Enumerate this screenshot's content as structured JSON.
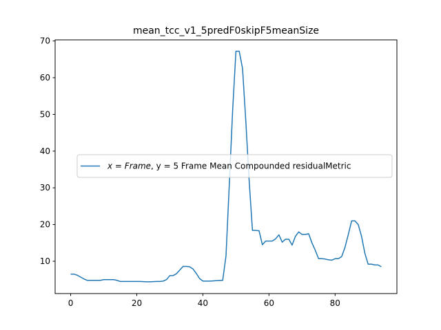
{
  "chart_data": {
    "type": "line",
    "title": "mean_tcc_v1_5predF0skipF5meanSize",
    "xlabel": "",
    "ylabel": "",
    "xlim": [
      -4.7,
      98.7
    ],
    "ylim": [
      1.2,
      70.3
    ],
    "x_ticks": [
      0,
      20,
      40,
      60,
      80
    ],
    "y_ticks": [
      10,
      20,
      30,
      40,
      50,
      60,
      70
    ],
    "grid": false,
    "legend": {
      "placement": "center-right"
    },
    "series": [
      {
        "legend_prefix": "x = Frame",
        "legend_suffix": ", y = 5 Frame Mean Compounded residualMetric",
        "color": "#1f77b4",
        "x": [
          0,
          1,
          2,
          3,
          4,
          5,
          6,
          7,
          8,
          9,
          10,
          11,
          12,
          13,
          14,
          15,
          16,
          17,
          18,
          19,
          20,
          21,
          22,
          23,
          24,
          25,
          26,
          27,
          28,
          29,
          30,
          31,
          32,
          33,
          34,
          35,
          36,
          37,
          38,
          39,
          40,
          41,
          42,
          43,
          44,
          45,
          46,
          47,
          48,
          49,
          50,
          51,
          52,
          53,
          54,
          55,
          56,
          57,
          58,
          59,
          60,
          61,
          62,
          63,
          64,
          65,
          66,
          67,
          68,
          69,
          70,
          71,
          72,
          73,
          74,
          75,
          76,
          77,
          78,
          79,
          80,
          81,
          82,
          83,
          84,
          85,
          86,
          87,
          88,
          89,
          90,
          91,
          92,
          93,
          94
        ],
        "y": [
          6.5,
          6.5,
          6.2,
          5.7,
          5.2,
          4.8,
          4.8,
          4.8,
          4.8,
          4.8,
          5.0,
          5.0,
          5.0,
          5.0,
          4.8,
          4.5,
          4.5,
          4.5,
          4.5,
          4.5,
          4.5,
          4.5,
          4.45,
          4.4,
          4.4,
          4.45,
          4.5,
          4.5,
          4.6,
          5.0,
          6.1,
          6.1,
          6.6,
          7.6,
          8.6,
          8.6,
          8.5,
          7.9,
          6.7,
          5.3,
          4.6,
          4.6,
          4.6,
          4.65,
          4.7,
          4.75,
          4.8,
          11.5,
          31.0,
          51.0,
          67.2,
          67.2,
          62.5,
          48.0,
          32.0,
          18.4,
          18.4,
          18.3,
          14.5,
          15.5,
          15.5,
          15.5,
          16.1,
          17.2,
          15.2,
          16.0,
          16.0,
          14.4,
          16.8,
          18.0,
          17.3,
          17.3,
          17.5,
          15.0,
          13.0,
          10.7,
          10.7,
          10.6,
          10.4,
          10.3,
          10.7,
          10.7,
          11.3,
          13.8,
          17.3,
          21.0,
          21.0,
          20.0,
          16.8,
          12.2,
          9.2,
          9.2,
          9.0,
          9.0,
          8.5
        ]
      }
    ]
  }
}
